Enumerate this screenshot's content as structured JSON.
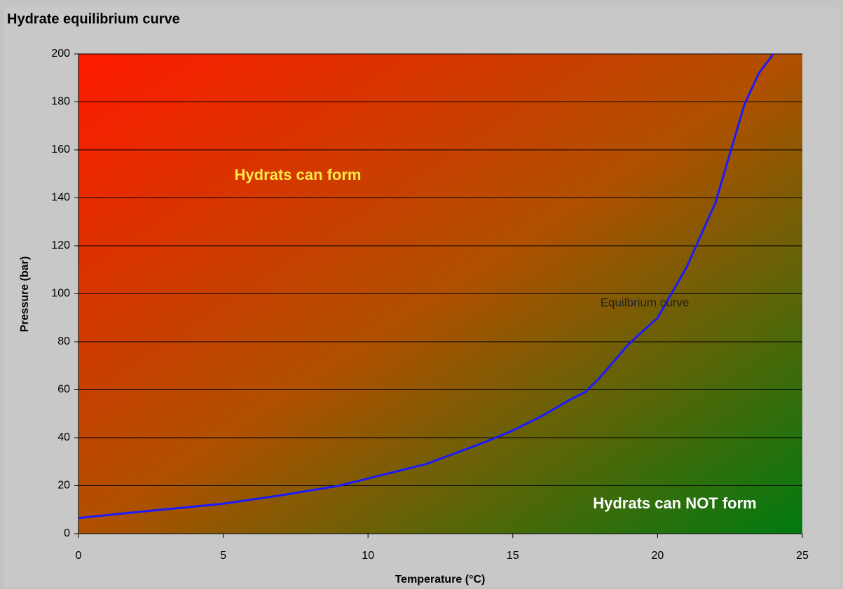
{
  "chart_data": {
    "type": "line",
    "title": "Hydrate equilibrium curve",
    "x_label": "Temperature (°C)",
    "y_label": "Pressure (bar)",
    "annotations": [
      "Hydrats can form",
      "Equilbrium  curve",
      "Hydrats can NOT form"
    ],
    "x": [
      0,
      2,
      5,
      7,
      9,
      10,
      12,
      14,
      15,
      16,
      17,
      17.5,
      18,
      19,
      20,
      21,
      22,
      23,
      23.5,
      24
    ],
    "series": [
      {
        "color": "#1a1aff",
        "values": [
          6.5,
          9,
          12.5,
          16,
          20,
          23,
          29,
          38,
          43,
          49,
          56,
          59,
          65,
          79,
          90,
          111,
          138,
          179,
          192,
          200
        ]
      }
    ],
    "xlim": [
      0,
      25
    ],
    "xticks": [
      0,
      5,
      10,
      15,
      20,
      25
    ],
    "ylim": [
      0,
      200
    ],
    "yticks": [
      0,
      20,
      40,
      60,
      80,
      100,
      120,
      140,
      160,
      180,
      200
    ],
    "grid": true,
    "background_gradient": [
      "#ff1a00",
      "#b05000",
      "#007a10"
    ]
  }
}
